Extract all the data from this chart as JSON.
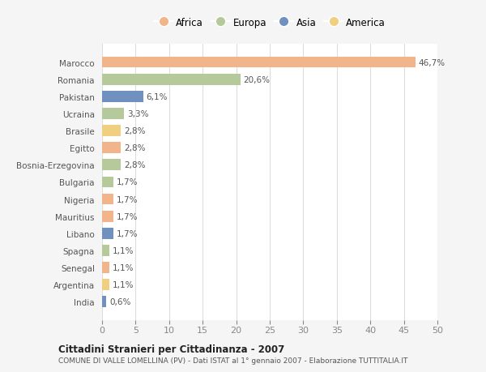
{
  "categories": [
    "Marocco",
    "Romania",
    "Pakistan",
    "Ucraina",
    "Brasile",
    "Egitto",
    "Bosnia-Erzegovina",
    "Bulgaria",
    "Nigeria",
    "Mauritius",
    "Libano",
    "Spagna",
    "Senegal",
    "Argentina",
    "India"
  ],
  "values": [
    46.7,
    20.6,
    6.1,
    3.3,
    2.8,
    2.8,
    2.8,
    1.7,
    1.7,
    1.7,
    1.7,
    1.1,
    1.1,
    1.1,
    0.6
  ],
  "labels": [
    "46,7%",
    "20,6%",
    "6,1%",
    "3,3%",
    "2,8%",
    "2,8%",
    "2,8%",
    "1,7%",
    "1,7%",
    "1,7%",
    "1,7%",
    "1,1%",
    "1,1%",
    "1,1%",
    "0,6%"
  ],
  "continents": [
    "Africa",
    "Europa",
    "Asia",
    "Europa",
    "America",
    "Africa",
    "Europa",
    "Europa",
    "Africa",
    "Africa",
    "Asia",
    "Europa",
    "Africa",
    "America",
    "Asia"
  ],
  "colors": {
    "Africa": "#F2B48A",
    "Europa": "#B5C99A",
    "Asia": "#7090C0",
    "America": "#F0D080"
  },
  "legend_order": [
    "Africa",
    "Europa",
    "Asia",
    "America"
  ],
  "xlim": [
    0,
    50
  ],
  "xticks": [
    0,
    5,
    10,
    15,
    20,
    25,
    30,
    35,
    40,
    45,
    50
  ],
  "title": "Cittadini Stranieri per Cittadinanza - 2007",
  "subtitle": "COMUNE DI VALLE LOMELLINA (PV) - Dati ISTAT al 1° gennaio 2007 - Elaborazione TUTTITALIA.IT",
  "bg_color": "#f5f5f5",
  "plot_bg_color": "#ffffff",
  "grid_color": "#dddddd",
  "label_color": "#555555",
  "pct_color": "#555555"
}
